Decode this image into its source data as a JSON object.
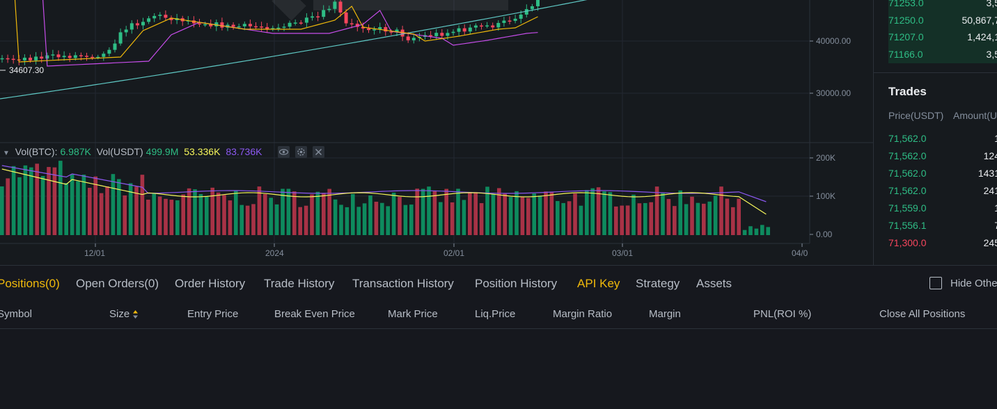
{
  "chart": {
    "last_price_marker": "34607.30",
    "y_labels": [
      "40000.00",
      "30000.00"
    ],
    "volume_y_labels": [
      "200K",
      "100K",
      "0.00"
    ],
    "x_labels": [
      "12/01",
      "2024",
      "02/01",
      "03/01",
      "04/0"
    ],
    "volume_legend": {
      "label1": "Vol(BTC):",
      "value1": "6.987K",
      "label2": "Vol(USDT)",
      "value2": "499.9M",
      "value3": "53.336K",
      "value4": "83.736K"
    },
    "colors": {
      "up": "#2ebd85",
      "down": "#f6465d",
      "up_volume": "#0e8a5e",
      "down_volume": "#a83246",
      "ma_yellow": "#f0b90b",
      "ma_purple": "#c74dea",
      "ma_teal": "#5fc9c5",
      "vol_ma_yellow": "#f6f65b",
      "vol_ma_purple": "#8b58f0"
    }
  },
  "orderbook": {
    "rows": [
      {
        "price": "71253.0",
        "amount": "3,5"
      },
      {
        "price": "71250.0",
        "amount": "50,867,7"
      },
      {
        "price": "71207.0",
        "amount": "1,424,1"
      },
      {
        "price": "71166.0",
        "amount": "3,5"
      }
    ]
  },
  "trades": {
    "title": "Trades",
    "col_price": "Price(USDT)",
    "col_amount": "Amount(U",
    "rows": [
      {
        "price": "71,562.0",
        "amount": "1",
        "side": "buy"
      },
      {
        "price": "71,562.0",
        "amount": "124",
        "side": "buy"
      },
      {
        "price": "71,562.0",
        "amount": "1431",
        "side": "buy"
      },
      {
        "price": "71,562.0",
        "amount": "241",
        "side": "buy"
      },
      {
        "price": "71,559.0",
        "amount": "1",
        "side": "buy"
      },
      {
        "price": "71,556.1",
        "amount": "7",
        "side": "buy"
      },
      {
        "price": "71,300.0",
        "amount": "245",
        "side": "sell"
      }
    ]
  },
  "bottom": {
    "tabs": [
      {
        "label": "Positions(0)",
        "state": "active"
      },
      {
        "label": "Open Orders(0)",
        "state": ""
      },
      {
        "label": "Order History",
        "state": ""
      },
      {
        "label": "Trade History",
        "state": ""
      },
      {
        "label": "Transaction History",
        "state": ""
      },
      {
        "label": "Position History",
        "state": ""
      },
      {
        "label": "API Key",
        "state": "accent"
      },
      {
        "label": "Strategy",
        "state": ""
      },
      {
        "label": "Assets",
        "state": ""
      }
    ],
    "hide_other_label": "Hide Othe",
    "columns": [
      "Symbol",
      "Size",
      "Entry Price",
      "Break Even Price",
      "Mark Price",
      "Liq.Price",
      "Margin Ratio",
      "Margin",
      "PNL(ROI %)"
    ],
    "close_all_label": "Close All Positions"
  }
}
